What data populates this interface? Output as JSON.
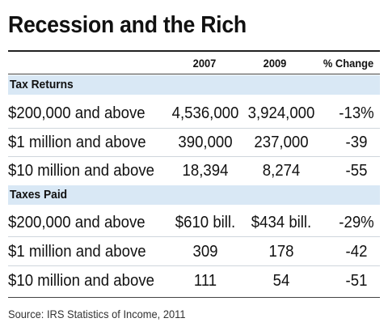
{
  "title": "Recession and the Rich",
  "columns": {
    "c2007": "2007",
    "c2009": "2009",
    "pct_change": "% Change"
  },
  "sections": [
    {
      "label": "Tax Returns",
      "rows": [
        {
          "label": "$200,000 and above",
          "v2007": "4,536,000",
          "v2009": "3,924,000",
          "pct": "-13%"
        },
        {
          "label": "$1 million and above",
          "v2007": "390,000",
          "v2009": "237,000",
          "pct": "-39"
        },
        {
          "label": "$10 million and above",
          "v2007": "18,394",
          "v2009": "8,274",
          "pct": "-55"
        }
      ]
    },
    {
      "label": "Taxes Paid",
      "rows": [
        {
          "label": "$200,000 and above",
          "v2007": "$610 bill.",
          "v2009": "$434 bill.",
          "pct": "-29%"
        },
        {
          "label": "$1 million and above",
          "v2007": "309",
          "v2009": "178",
          "pct": "-42"
        },
        {
          "label": "$10 million and above",
          "v2007": "111",
          "v2009": "54",
          "pct": "-51"
        }
      ]
    }
  ],
  "source": "Source: IRS Statistics of Income, 2011",
  "colors": {
    "section_bar": "#d9e8f5",
    "text": "#111111"
  }
}
